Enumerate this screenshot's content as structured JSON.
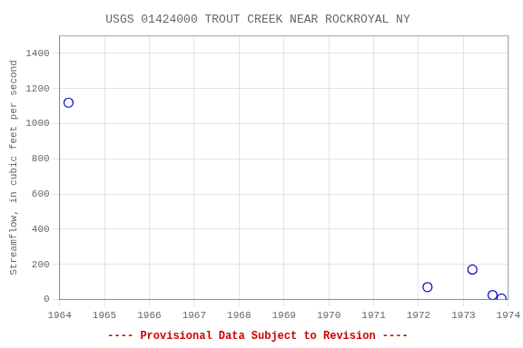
{
  "chart_data": {
    "type": "scatter",
    "title": "USGS 01424000 TROUT CREEK NEAR ROCKROYAL NY",
    "ylabel": "Streamflow, in cubic feet per second",
    "x": [
      1964.2,
      1972.2,
      1973.2,
      1973.65,
      1973.85
    ],
    "values": [
      1120,
      70,
      170,
      25,
      5
    ],
    "color": "#0000cc",
    "marker": "open_circle",
    "xlim": [
      1964,
      1974
    ],
    "ylim": [
      0,
      1500
    ],
    "xticks": [
      1964,
      1965,
      1966,
      1967,
      1968,
      1969,
      1970,
      1971,
      1972,
      1973,
      1974
    ],
    "yticks": [
      0,
      200,
      400,
      600,
      800,
      1000,
      1200,
      1400
    ],
    "grid": true,
    "annotations": [
      {
        "text": "---- Provisional Data Subject to Revision ----",
        "color": "#cc0000"
      }
    ]
  }
}
